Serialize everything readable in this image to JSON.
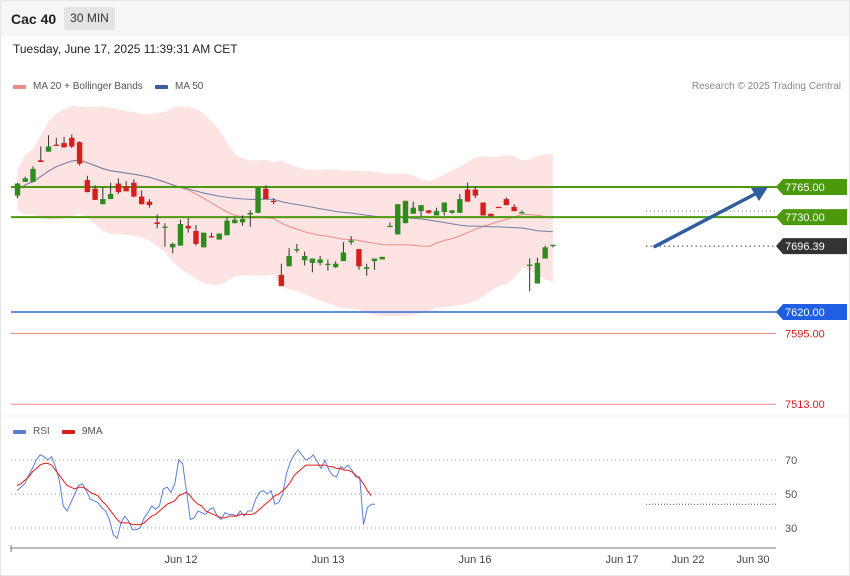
{
  "header": {
    "symbol": "Cac 40",
    "timeframe": "30 MIN"
  },
  "timestamp": "Tuesday, June 17, 2025 11:39:31 AM CET",
  "credit": "Research © 2025 Trading Central",
  "legend": {
    "ma20": {
      "label": "MA 20 + Bollinger Bands",
      "color": "#f08a85"
    },
    "ma50": {
      "label": "MA 50",
      "color": "#3a5c9a"
    },
    "rsi": {
      "label": "RSI",
      "color": "#5b7fd6"
    },
    "rsi_ma": {
      "label": "9MA",
      "color": "#e01b1b"
    }
  },
  "chart_data": [
    {
      "type": "candlestick",
      "ylim": [
        7490,
        7830
      ],
      "x_ticks": [
        "Jun 12",
        "Jun 13",
        "Jun 16",
        "Jun 17",
        "Jun 22",
        "Jun 30"
      ],
      "candles": [
        [
          7755,
          7769,
          7752,
          7770
        ],
        [
          7771,
          7775,
          7772,
          7777
        ],
        [
          7771,
          7786,
          7784,
          7789
        ],
        [
          7796,
          7794,
          7807,
          7812
        ],
        [
          7806,
          7812,
          7818,
          7825
        ],
        [
          7814,
          7813,
          7818,
          7822
        ],
        [
          7816,
          7811,
          7818,
          7823
        ],
        [
          7822,
          7812,
          7810,
          7826
        ],
        [
          7817,
          7792,
          7790,
          7818
        ],
        [
          7773,
          7759,
          7780,
          7778
        ],
        [
          7763,
          7750,
          7765,
          7767
        ],
        [
          7745,
          7751,
          7753,
          7765
        ],
        [
          7751,
          7757,
          7765,
          7770
        ],
        [
          7769,
          7759,
          7757,
          7775
        ],
        [
          7766,
          7760,
          7760,
          7772
        ],
        [
          7770,
          7754,
          7753,
          7774
        ],
        [
          7754,
          7745,
          7749,
          7761
        ],
        [
          7748,
          7744,
          7741,
          7751
        ],
        [
          7724,
          7722,
          7717,
          7733
        ],
        [
          7719,
          7719,
          7696,
          7723
        ],
        [
          7695,
          7699,
          7688,
          7700
        ],
        [
          7697,
          7722,
          7699,
          7727
        ],
        [
          7720,
          7717,
          7712,
          7729
        ],
        [
          7714,
          7699,
          7697,
          7721
        ],
        [
          7695,
          7712,
          7706,
          7711
        ],
        [
          7708,
          7707,
          7706,
          7712
        ],
        [
          7704,
          7711,
          7705,
          7709
        ],
        [
          7709,
          7726,
          7711,
          7730
        ],
        [
          7723,
          7727,
          7726,
          7730
        ],
        [
          7724,
          7728,
          7720,
          7732
        ],
        [
          7733,
          7735,
          7719,
          7738
        ],
        [
          7735,
          7764,
          7750,
          7764
        ],
        [
          7763,
          7751,
          7752,
          7767
        ],
        [
          7749,
          7748,
          7745,
          7752
        ],
        [
          7663,
          7650,
          7665,
          7676
        ],
        [
          7673,
          7685,
          7677,
          7694
        ],
        [
          7693,
          7693,
          7689,
          7699
        ],
        [
          7680,
          7685,
          7674,
          7690
        ],
        [
          7677,
          7682,
          7666,
          7680
        ],
        [
          7677,
          7681,
          7674,
          7685
        ],
        [
          7675,
          7676,
          7668,
          7681
        ],
        [
          7672,
          7676,
          7671,
          7679
        ],
        [
          7679,
          7689,
          7686,
          7701
        ],
        [
          7701,
          7703,
          7698,
          7708
        ],
        [
          7693,
          7673,
          7669,
          7692
        ],
        [
          7670,
          7672,
          7662,
          7676
        ],
        [
          7679,
          7682,
          7669,
          7681
        ],
        [
          7681,
          7684,
          7688,
          7682
        ],
        [
          7720,
          7720,
          7739,
          7724
        ],
        [
          7710,
          7745,
          7734,
          7721
        ],
        [
          7723,
          7749,
          7731,
          7736
        ],
        [
          7734,
          7741,
          7746,
          7748
        ],
        [
          7737,
          7744,
          7731,
          7740
        ],
        [
          7738,
          7735,
          7734,
          7734
        ],
        [
          7732,
          7737,
          7737,
          7741
        ],
        [
          7736,
          7747,
          7732,
          7747
        ],
        [
          7735,
          7738,
          7734,
          7738
        ],
        [
          7735,
          7751,
          7745,
          7757
        ],
        [
          7762,
          7748,
          7767,
          7770
        ],
        [
          7762,
          7755,
          7752,
          7766
        ],
        [
          7747,
          7732,
          7744,
          7738
        ],
        [
          7734,
          7731,
          7740,
          7734
        ],
        [
          7742,
          7741,
          7751,
          7739
        ],
        [
          7751,
          7744,
          7747,
          7753
        ],
        [
          7742,
          7737,
          7744,
          7745
        ],
        [
          7736,
          7736,
          7734,
          7738
        ],
        [
          7674,
          7675,
          7644,
          7682
        ],
        [
          7653,
          7677,
          7660,
          7683
        ],
        [
          7682,
          7695,
          7688,
          7697
        ],
        [
          7697,
          7698,
          7695,
          7687
        ]
      ],
      "levels": [
        {
          "value": "7765.00",
          "role": "resistance"
        },
        {
          "value": "7730.00",
          "role": "resistance"
        },
        {
          "value": "7696.39",
          "role": "last"
        },
        {
          "value": "7620.00",
          "role": "pivot"
        },
        {
          "value": "7595.00",
          "role": "support"
        },
        {
          "value": "7513.00",
          "role": "support"
        }
      ],
      "forecast_arrow": {
        "from": 7696,
        "to": 7765
      }
    },
    {
      "type": "line",
      "ylim": [
        10,
        90
      ],
      "y_ticks": [
        "70",
        "50",
        "30"
      ],
      "series": [
        {
          "name": "RSI",
          "values": [
            52,
            54,
            56,
            61,
            65,
            70,
            73,
            72,
            70,
            72,
            66,
            58,
            43,
            40,
            45,
            50,
            55,
            56,
            52,
            47,
            46,
            45,
            42,
            40,
            35,
            26,
            24,
            33,
            37,
            34,
            29,
            29,
            30,
            36,
            39,
            43,
            41,
            43,
            53,
            54,
            51,
            56,
            70,
            68,
            52,
            35,
            36,
            40,
            39,
            38,
            41,
            42,
            37,
            35,
            39,
            38,
            38,
            37,
            40,
            37,
            40,
            40,
            47,
            51,
            52,
            50,
            52,
            44,
            45,
            50,
            62,
            69,
            73,
            76,
            73,
            70,
            71,
            73,
            69,
            65,
            70,
            64,
            61,
            60,
            66,
            65,
            67,
            64,
            60,
            60,
            32,
            42,
            44,
            44
          ]
        },
        {
          "name": "9MA",
          "values": [
            55,
            56,
            58,
            60,
            63,
            65,
            67,
            68,
            68,
            67,
            64,
            61,
            58,
            55,
            54,
            53,
            54,
            54,
            53,
            51,
            50,
            49,
            46,
            44,
            41,
            38,
            35,
            33,
            33,
            33,
            32,
            32,
            32,
            33,
            35,
            37,
            38,
            40,
            42,
            44,
            45,
            46,
            49,
            50,
            51,
            49,
            46,
            44,
            43,
            40,
            39,
            38,
            37,
            36,
            36,
            37,
            37,
            37,
            38,
            38,
            38,
            38,
            39,
            41,
            43,
            45,
            47,
            49,
            50,
            52,
            54,
            57,
            61,
            63,
            65,
            67,
            67,
            67,
            67,
            67,
            67,
            66,
            66,
            65,
            65,
            64,
            64,
            63,
            61,
            59,
            56,
            52,
            49
          ]
        }
      ]
    }
  ]
}
